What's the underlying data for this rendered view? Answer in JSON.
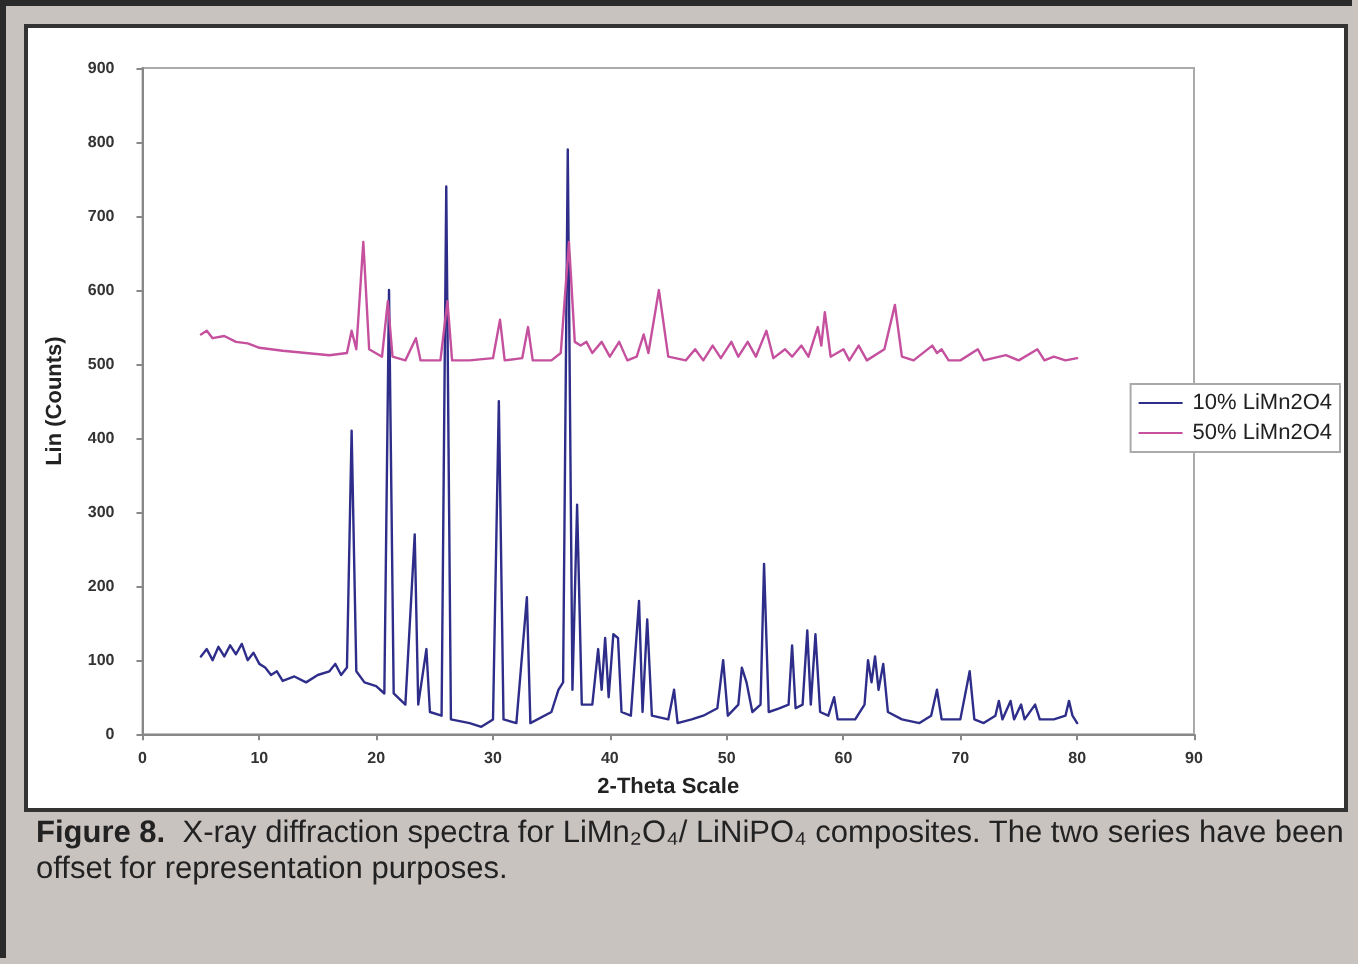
{
  "chart_data": {
    "type": "line",
    "xlabel": "2-Theta Scale",
    "ylabel": "Lin (Counts)",
    "xlim": [
      0,
      90
    ],
    "xticks": [
      0,
      10,
      20,
      30,
      40,
      50,
      60,
      70,
      80,
      90
    ],
    "ylim": [
      0,
      900
    ],
    "yticks": [
      0,
      100,
      200,
      300,
      400,
      500,
      600,
      700,
      800,
      900
    ],
    "grid": false,
    "legend": "right",
    "marker": "none",
    "line_style": "solid",
    "annotations": [
      "Figure 8.",
      "X-ray diffraction spectra for LiMn₂O₄/ LiNiPO₄ composites. The two series have been offset for representation purposes."
    ],
    "series": [
      {
        "name": "10% LiMn2O4",
        "color": "#2e2e8a",
        "x": [
          5,
          5.5,
          6,
          6.5,
          7,
          7.5,
          8,
          8.5,
          9,
          9.5,
          10,
          10.5,
          11,
          11.5,
          12,
          13,
          14,
          15,
          16,
          16.5,
          17,
          17.5,
          17.9,
          18.3,
          19,
          20,
          20.7,
          21.1,
          21.5,
          22.5,
          23.3,
          23.6,
          24.3,
          24.6,
          25.6,
          26.0,
          26.4,
          28,
          29,
          30,
          30.5,
          30.9,
          32,
          32.9,
          33.2,
          35,
          35.6,
          36.0,
          36.4,
          36.8,
          37.2,
          37.6,
          38.5,
          39,
          39.3,
          39.6,
          39.9,
          40.3,
          40.7,
          41,
          41.8,
          42.5,
          42.8,
          43.2,
          43.6,
          45,
          45.5,
          45.8,
          47,
          48,
          49.2,
          49.7,
          50.1,
          51,
          51.3,
          51.7,
          52.2,
          52.9,
          53.2,
          53.6,
          54.5,
          55.3,
          55.6,
          55.9,
          56.5,
          56.9,
          57.2,
          57.6,
          58,
          58.7,
          59.2,
          59.5,
          61,
          61.8,
          62.1,
          62.4,
          62.7,
          63,
          63.4,
          63.8,
          65,
          66.5,
          67.5,
          68,
          68.4,
          70,
          70.8,
          71.2,
          72,
          73,
          73.3,
          73.6,
          74.3,
          74.6,
          75.2,
          75.5,
          76.4,
          76.8,
          78,
          79,
          79.3,
          79.6,
          80
        ],
        "values": [
          105,
          115,
          100,
          118,
          105,
          120,
          108,
          122,
          100,
          110,
          95,
          90,
          80,
          85,
          72,
          78,
          70,
          80,
          85,
          95,
          80,
          90,
          410,
          85,
          70,
          65,
          55,
          600,
          55,
          40,
          270,
          40,
          115,
          30,
          25,
          740,
          20,
          15,
          10,
          20,
          450,
          20,
          15,
          185,
          15,
          30,
          60,
          70,
          790,
          60,
          310,
          40,
          40,
          115,
          60,
          130,
          50,
          135,
          130,
          30,
          25,
          180,
          30,
          155,
          25,
          20,
          60,
          15,
          20,
          25,
          35,
          100,
          25,
          40,
          90,
          70,
          30,
          40,
          230,
          30,
          35,
          40,
          120,
          35,
          40,
          140,
          40,
          135,
          30,
          25,
          50,
          20,
          20,
          40,
          100,
          70,
          105,
          60,
          95,
          30,
          20,
          15,
          25,
          60,
          20,
          20,
          85,
          20,
          15,
          25,
          45,
          20,
          45,
          20,
          40,
          20,
          40,
          20,
          20,
          25,
          45,
          25,
          15
        ]
      },
      {
        "name": "50% LiMn2O4",
        "color": "#c4509e",
        "x": [
          5,
          5.5,
          6,
          7,
          8,
          9,
          10,
          12,
          14,
          16,
          17.5,
          17.9,
          18.3,
          18.9,
          19.4,
          20.5,
          21,
          21.4,
          22.5,
          23.4,
          23.8,
          25.5,
          26.1,
          26.5,
          28,
          30,
          30.6,
          31,
          32.5,
          33,
          33.4,
          35,
          35.8,
          36.5,
          37,
          37.5,
          38,
          38.5,
          39.3,
          40,
          40.8,
          41.5,
          42.3,
          42.9,
          43.3,
          44.2,
          45,
          46.5,
          47.3,
          48,
          48.8,
          49.5,
          50.4,
          51,
          51.8,
          52.5,
          53.4,
          54,
          55,
          55.6,
          56.4,
          57,
          57.8,
          58.1,
          58.4,
          58.9,
          60,
          60.5,
          61.3,
          62,
          63.5,
          64.4,
          65,
          66,
          67.6,
          68,
          68.4,
          69,
          70,
          71.5,
          72,
          73.9,
          75,
          76.6,
          77.2,
          78,
          79,
          80
        ],
        "values": [
          540,
          545,
          535,
          538,
          530,
          528,
          522,
          518,
          515,
          512,
          515,
          545,
          520,
          665,
          520,
          510,
          585,
          510,
          505,
          535,
          505,
          505,
          585,
          505,
          505,
          508,
          560,
          505,
          508,
          550,
          505,
          505,
          515,
          665,
          530,
          525,
          530,
          515,
          530,
          510,
          530,
          505,
          510,
          540,
          515,
          600,
          510,
          505,
          520,
          505,
          525,
          508,
          530,
          510,
          530,
          510,
          545,
          508,
          520,
          510,
          525,
          510,
          550,
          525,
          570,
          510,
          520,
          505,
          525,
          505,
          520,
          580,
          510,
          505,
          525,
          515,
          520,
          505,
          505,
          520,
          505,
          512,
          505,
          520,
          505,
          510,
          505,
          508
        ]
      }
    ]
  }
}
